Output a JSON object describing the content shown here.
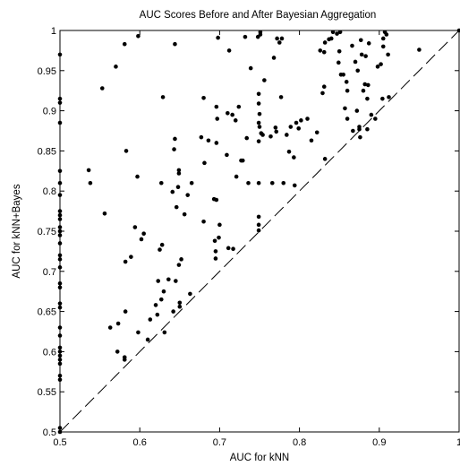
{
  "chart_data": {
    "type": "scatter",
    "title": "AUC Scores Before and After Bayesian Aggregation",
    "xlabel": "AUC for kNN",
    "ylabel": "AUC for kNN+Bayes",
    "xlim": [
      0.5,
      1.0
    ],
    "ylim": [
      0.5,
      1.0
    ],
    "xticks": [
      "0.5",
      "0.6",
      "0.7",
      "0.8",
      "0.9",
      "1"
    ],
    "yticks": [
      "0.5",
      "0.55",
      "0.6",
      "0.65",
      "0.7",
      "0.75",
      "0.8",
      "0.85",
      "0.9",
      "0.95",
      "1"
    ],
    "grid": false,
    "reference_line": {
      "style": "dashed",
      "from": [
        0.5,
        0.5
      ],
      "to": [
        1.0,
        1.0
      ]
    },
    "marker_color": "#000000",
    "points": [
      [
        0.5,
        0.97
      ],
      [
        0.5,
        0.915
      ],
      [
        0.5,
        0.91
      ],
      [
        0.5,
        0.885
      ],
      [
        0.5,
        0.825
      ],
      [
        0.5,
        0.81
      ],
      [
        0.5,
        0.795
      ],
      [
        0.5,
        0.775
      ],
      [
        0.5,
        0.77
      ],
      [
        0.5,
        0.765
      ],
      [
        0.5,
        0.755
      ],
      [
        0.5,
        0.75
      ],
      [
        0.5,
        0.745
      ],
      [
        0.5,
        0.735
      ],
      [
        0.5,
        0.72
      ],
      [
        0.5,
        0.715
      ],
      [
        0.5,
        0.705
      ],
      [
        0.5,
        0.685
      ],
      [
        0.5,
        0.68
      ],
      [
        0.5,
        0.66
      ],
      [
        0.5,
        0.655
      ],
      [
        0.5,
        0.63
      ],
      [
        0.5,
        0.62
      ],
      [
        0.5,
        0.605
      ],
      [
        0.5,
        0.6
      ],
      [
        0.5,
        0.595
      ],
      [
        0.5,
        0.59
      ],
      [
        0.5,
        0.585
      ],
      [
        0.5,
        0.57
      ],
      [
        0.5,
        0.565
      ],
      [
        0.5,
        0.505
      ],
      [
        0.5,
        0.5
      ],
      [
        0.536,
        0.826
      ],
      [
        0.538,
        0.81
      ],
      [
        0.553,
        0.928
      ],
      [
        0.556,
        0.772
      ],
      [
        0.563,
        0.63
      ],
      [
        0.57,
        0.955
      ],
      [
        0.572,
        0.6
      ],
      [
        0.573,
        0.635
      ],
      [
        0.581,
        0.983
      ],
      [
        0.581,
        0.593
      ],
      [
        0.581,
        0.59
      ],
      [
        0.582,
        0.65
      ],
      [
        0.583,
        0.85
      ],
      [
        0.582,
        0.712
      ],
      [
        0.589,
        0.718
      ],
      [
        0.594,
        0.755
      ],
      [
        0.597,
        0.818
      ],
      [
        0.598,
        0.993
      ],
      [
        0.598,
        0.624
      ],
      [
        0.602,
        0.74
      ],
      [
        0.605,
        0.747
      ],
      [
        0.61,
        0.615
      ],
      [
        0.613,
        0.64
      ],
      [
        0.62,
        0.658
      ],
      [
        0.622,
        0.646
      ],
      [
        0.623,
        0.688
      ],
      [
        0.625,
        0.727
      ],
      [
        0.627,
        0.665
      ],
      [
        0.628,
        0.733
      ],
      [
        0.627,
        0.81
      ],
      [
        0.629,
        0.917
      ],
      [
        0.63,
        0.675
      ],
      [
        0.631,
        0.624
      ],
      [
        0.636,
        0.69
      ],
      [
        0.641,
        0.799
      ],
      [
        0.642,
        0.65
      ],
      [
        0.643,
        0.852
      ],
      [
        0.644,
        0.865
      ],
      [
        0.644,
        0.983
      ],
      [
        0.645,
        0.688
      ],
      [
        0.646,
        0.78
      ],
      [
        0.648,
        0.805
      ],
      [
        0.649,
        0.826
      ],
      [
        0.649,
        0.822
      ],
      [
        0.649,
        0.708
      ],
      [
        0.65,
        0.661
      ],
      [
        0.65,
        0.656
      ],
      [
        0.652,
        0.715
      ],
      [
        0.656,
        0.771
      ],
      [
        0.66,
        0.795
      ],
      [
        0.663,
        0.672
      ],
      [
        0.665,
        0.81
      ],
      [
        0.677,
        0.867
      ],
      [
        0.68,
        0.916
      ],
      [
        0.681,
        0.835
      ],
      [
        0.68,
        0.762
      ],
      [
        0.686,
        0.863
      ],
      [
        0.693,
        0.79
      ],
      [
        0.694,
        0.738
      ],
      [
        0.695,
        0.725
      ],
      [
        0.695,
        0.716
      ],
      [
        0.696,
        0.789
      ],
      [
        0.696,
        0.86
      ],
      [
        0.696,
        0.905
      ],
      [
        0.697,
        0.89
      ],
      [
        0.698,
        0.991
      ],
      [
        0.699,
        0.742
      ],
      [
        0.7,
        0.758
      ],
      [
        0.709,
        0.845
      ],
      [
        0.71,
        0.897
      ],
      [
        0.711,
        0.729
      ],
      [
        0.712,
        0.975
      ],
      [
        0.716,
        0.895
      ],
      [
        0.717,
        0.728
      ],
      [
        0.72,
        0.888
      ],
      [
        0.721,
        0.818
      ],
      [
        0.724,
        0.905
      ],
      [
        0.727,
        0.838
      ],
      [
        0.729,
        0.838
      ],
      [
        0.732,
        0.992
      ],
      [
        0.734,
        0.866
      ],
      [
        0.736,
        0.81
      ],
      [
        0.739,
        0.953
      ],
      [
        0.748,
        0.992
      ],
      [
        0.749,
        0.921
      ],
      [
        0.749,
        0.909
      ],
      [
        0.749,
        0.885
      ],
      [
        0.749,
        0.862
      ],
      [
        0.749,
        0.81
      ],
      [
        0.749,
        0.768
      ],
      [
        0.749,
        0.758
      ],
      [
        0.749,
        0.751
      ],
      [
        0.75,
        0.896
      ],
      [
        0.75,
        0.88
      ],
      [
        0.751,
        0.998
      ],
      [
        0.751,
        0.995
      ],
      [
        0.752,
        0.872
      ],
      [
        0.754,
        0.87
      ],
      [
        0.756,
        0.938
      ],
      [
        0.764,
        0.868
      ],
      [
        0.766,
        0.81
      ],
      [
        0.768,
        0.966
      ],
      [
        0.77,
        0.879
      ],
      [
        0.771,
        0.874
      ],
      [
        0.772,
        0.99
      ],
      [
        0.775,
        0.985
      ],
      [
        0.777,
        0.917
      ],
      [
        0.778,
        0.99
      ],
      [
        0.78,
        0.81
      ],
      [
        0.784,
        0.87
      ],
      [
        0.787,
        0.849
      ],
      [
        0.789,
        0.88
      ],
      [
        0.793,
        0.842
      ],
      [
        0.794,
        0.807
      ],
      [
        0.796,
        0.885
      ],
      [
        0.799,
        0.878
      ],
      [
        0.802,
        0.888
      ],
      [
        0.81,
        0.89
      ],
      [
        0.815,
        0.863
      ],
      [
        0.822,
        0.873
      ],
      [
        0.826,
        0.975
      ],
      [
        0.829,
        0.922
      ],
      [
        0.831,
        0.93
      ],
      [
        0.831,
        0.973
      ],
      [
        0.832,
        0.985
      ],
      [
        0.832,
        0.84
      ],
      [
        0.837,
        0.989
      ],
      [
        0.84,
        0.99
      ],
      [
        0.842,
        0.998
      ],
      [
        0.847,
        0.996
      ],
      [
        0.849,
        0.96
      ],
      [
        0.85,
        0.974
      ],
      [
        0.851,
        0.998
      ],
      [
        0.852,
        0.945
      ],
      [
        0.855,
        0.945
      ],
      [
        0.857,
        0.903
      ],
      [
        0.859,
        0.936
      ],
      [
        0.86,
        0.925
      ],
      [
        0.86,
        0.89
      ],
      [
        0.866,
        0.981
      ],
      [
        0.867,
        0.875
      ],
      [
        0.87,
        0.961
      ],
      [
        0.872,
        0.9
      ],
      [
        0.873,
        0.95
      ],
      [
        0.875,
        0.88
      ],
      [
        0.875,
        0.877
      ],
      [
        0.876,
        0.867
      ],
      [
        0.877,
        0.988
      ],
      [
        0.878,
        0.97
      ],
      [
        0.88,
        0.925
      ],
      [
        0.882,
        0.933
      ],
      [
        0.883,
        0.968
      ],
      [
        0.885,
        0.915
      ],
      [
        0.885,
        0.877
      ],
      [
        0.886,
        0.932
      ],
      [
        0.887,
        0.984
      ],
      [
        0.89,
        0.895
      ],
      [
        0.895,
        0.89
      ],
      [
        0.898,
        0.955
      ],
      [
        0.902,
        0.958
      ],
      [
        0.904,
        0.915
      ],
      [
        0.905,
        0.98
      ],
      [
        0.905,
        0.99
      ],
      [
        0.907,
        0.998
      ],
      [
        0.909,
        0.995
      ],
      [
        0.911,
        0.97
      ],
      [
        0.912,
        0.917
      ],
      [
        0.95,
        0.976
      ],
      [
        1.0,
        1.0
      ]
    ]
  }
}
